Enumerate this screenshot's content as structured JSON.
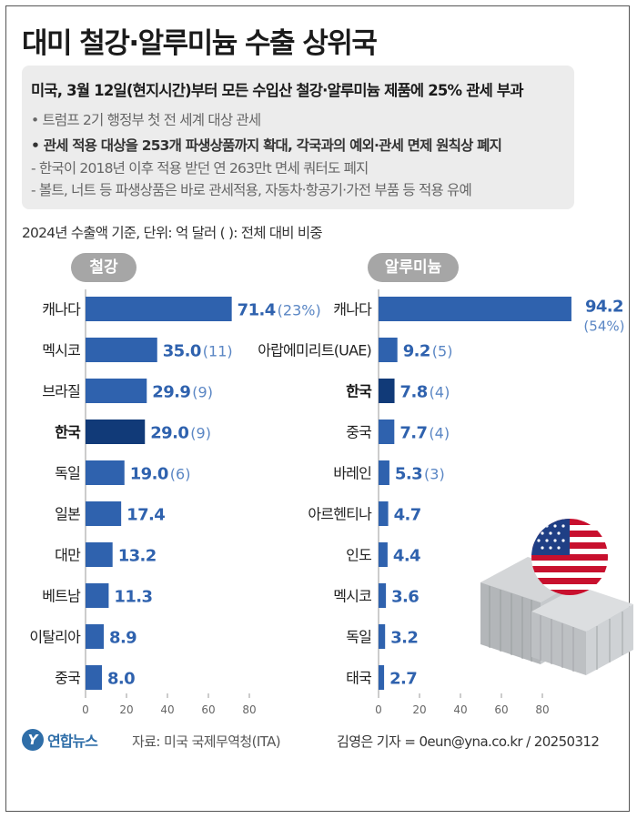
{
  "title": "대미 철강·알루미늄 수출 상위국",
  "notes": {
    "headline": "미국, 3월 12일(현지시간)부터 모든 수입산 철강·알루미늄 제품에 25% 관세 부과",
    "bullet1": "• 트럼프 2기 행정부 첫 전 세계 대상 관세",
    "bullet2": "• 관세 적용 대상을 253개 파생상품까지 확대, 각국과의 예외·관세 면제 원칙상 폐지",
    "sub1": "- 한국이 2018년 이후 적용 받던 연 263만t 면세 쿼터도 폐지",
    "sub2": "- 볼트, 너트 등 파생상품은 바로 관세적용, 자동차·항공기·가전 부품 등 적용 유예"
  },
  "basis": "2024년 수출액 기준, 단위: 억 달러 ( ): 전체 대비 비중",
  "colors": {
    "bar": "#2f62ae",
    "bar_highlight": "#113a78",
    "value": "#2f62ae",
    "share": "#5a86c4",
    "pill": "#a6a6a6"
  },
  "chart_data": [
    {
      "type": "bar",
      "orientation": "horizontal",
      "title": "철강",
      "categories": [
        "캐나다",
        "멕시코",
        "브라질",
        "한국",
        "독일",
        "일본",
        "대만",
        "베트남",
        "이탈리아",
        "중국"
      ],
      "values": [
        71.4,
        35.0,
        29.9,
        29.0,
        19.0,
        17.4,
        13.2,
        11.3,
        8.9,
        8.0
      ],
      "value_labels": [
        "71.4",
        "35.0",
        "29.9",
        "29.0",
        "19.0",
        "17.4",
        "13.2",
        "11.3",
        "8.9",
        "8.0"
      ],
      "share_labels": [
        "(23%)",
        "(11)",
        "(9)",
        "(9)",
        "(6)",
        "",
        "",
        "",
        "",
        ""
      ],
      "highlight": "한국",
      "xticks": [
        0,
        20,
        40,
        60,
        80
      ],
      "xlim": [
        0,
        80
      ]
    },
    {
      "type": "bar",
      "orientation": "horizontal",
      "title": "알루미늄",
      "categories": [
        "캐나다",
        "아랍에미리트(UAE)",
        "한국",
        "중국",
        "바레인",
        "아르헨티나",
        "인도",
        "멕시코",
        "독일",
        "태국"
      ],
      "values": [
        94.2,
        9.2,
        7.8,
        7.7,
        5.3,
        4.7,
        4.4,
        3.6,
        3.2,
        2.7
      ],
      "value_labels": [
        "94.2",
        "9.2",
        "7.8",
        "7.7",
        "5.3",
        "4.7",
        "4.4",
        "3.6",
        "3.2",
        "2.7"
      ],
      "share_labels": [
        "(54%)",
        "(5)",
        "(4)",
        "(4)",
        "(3)",
        "",
        "",
        "",
        "",
        ""
      ],
      "highlight": "한국",
      "xticks": [
        0,
        20,
        40,
        60,
        80
      ],
      "xlim": [
        0,
        80
      ]
    }
  ],
  "footer": {
    "logo_icon": "Y",
    "logo_text": "연합뉴스",
    "source": "자료: 미국 국제무역청(ITA)",
    "credit": "김영은 기자 = 0eun@yna.co.kr / 20250312"
  }
}
